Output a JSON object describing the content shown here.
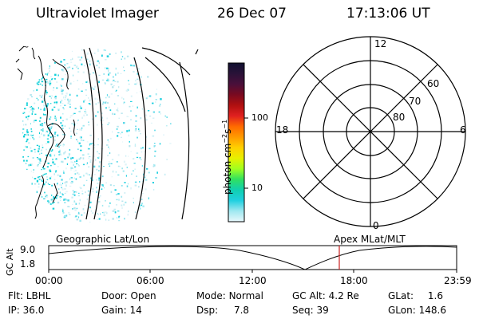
{
  "header": {
    "instrument": "Ultraviolet Imager",
    "date": "26 Dec 07",
    "time": "17:13:06 UT"
  },
  "colorbar": {
    "label_main": "photon cm",
    "label_exp1": "−2",
    "label_mid": "s",
    "label_exp2": "−1",
    "ticks": [
      "100",
      "10"
    ],
    "scale": "log",
    "colors": [
      "#101030",
      "#2a1238",
      "#4a0f3a",
      "#7a0a20",
      "#b01010",
      "#e02020",
      "#ff6a00",
      "#ff9a00",
      "#ffd000",
      "#e8f000",
      "#a0ff20",
      "#30e060",
      "#10d0b0",
      "#20d0e0",
      "#a0e8f0",
      "#e8f8fc"
    ]
  },
  "polar": {
    "mlt_labels": [
      "12",
      "18",
      "6",
      "0"
    ],
    "lat_labels": [
      "60",
      "70",
      "80"
    ]
  },
  "timeline": {
    "left_label": "Geographic Lat/Lon",
    "right_label": "Apex  MLat/MLT",
    "yaxis_title": "GC Alt",
    "yticks": [
      "9.0",
      "1.8"
    ],
    "xticks": [
      "00:00",
      "06:00",
      "12:00",
      "18:00",
      "23:59"
    ],
    "marker_color": "#cc2222"
  },
  "status": {
    "row1": [
      {
        "k": "Flt:",
        "v": "LBHL"
      },
      {
        "k": "Door:",
        "v": "Open"
      },
      {
        "k": "Mode:",
        "v": "Normal"
      },
      {
        "k": "GC Alt:",
        "v": "4.2 Re"
      },
      {
        "k": "GLat:",
        "v": "1.6"
      }
    ],
    "row2": [
      {
        "k": "IP:",
        "v": "36.0"
      },
      {
        "k": "Gain:",
        "v": "14"
      },
      {
        "k": "Dsp:",
        "v": "7.8"
      },
      {
        "k": "Seq:",
        "v": "39"
      },
      {
        "k": "GLon:",
        "v": "148.6"
      }
    ]
  }
}
